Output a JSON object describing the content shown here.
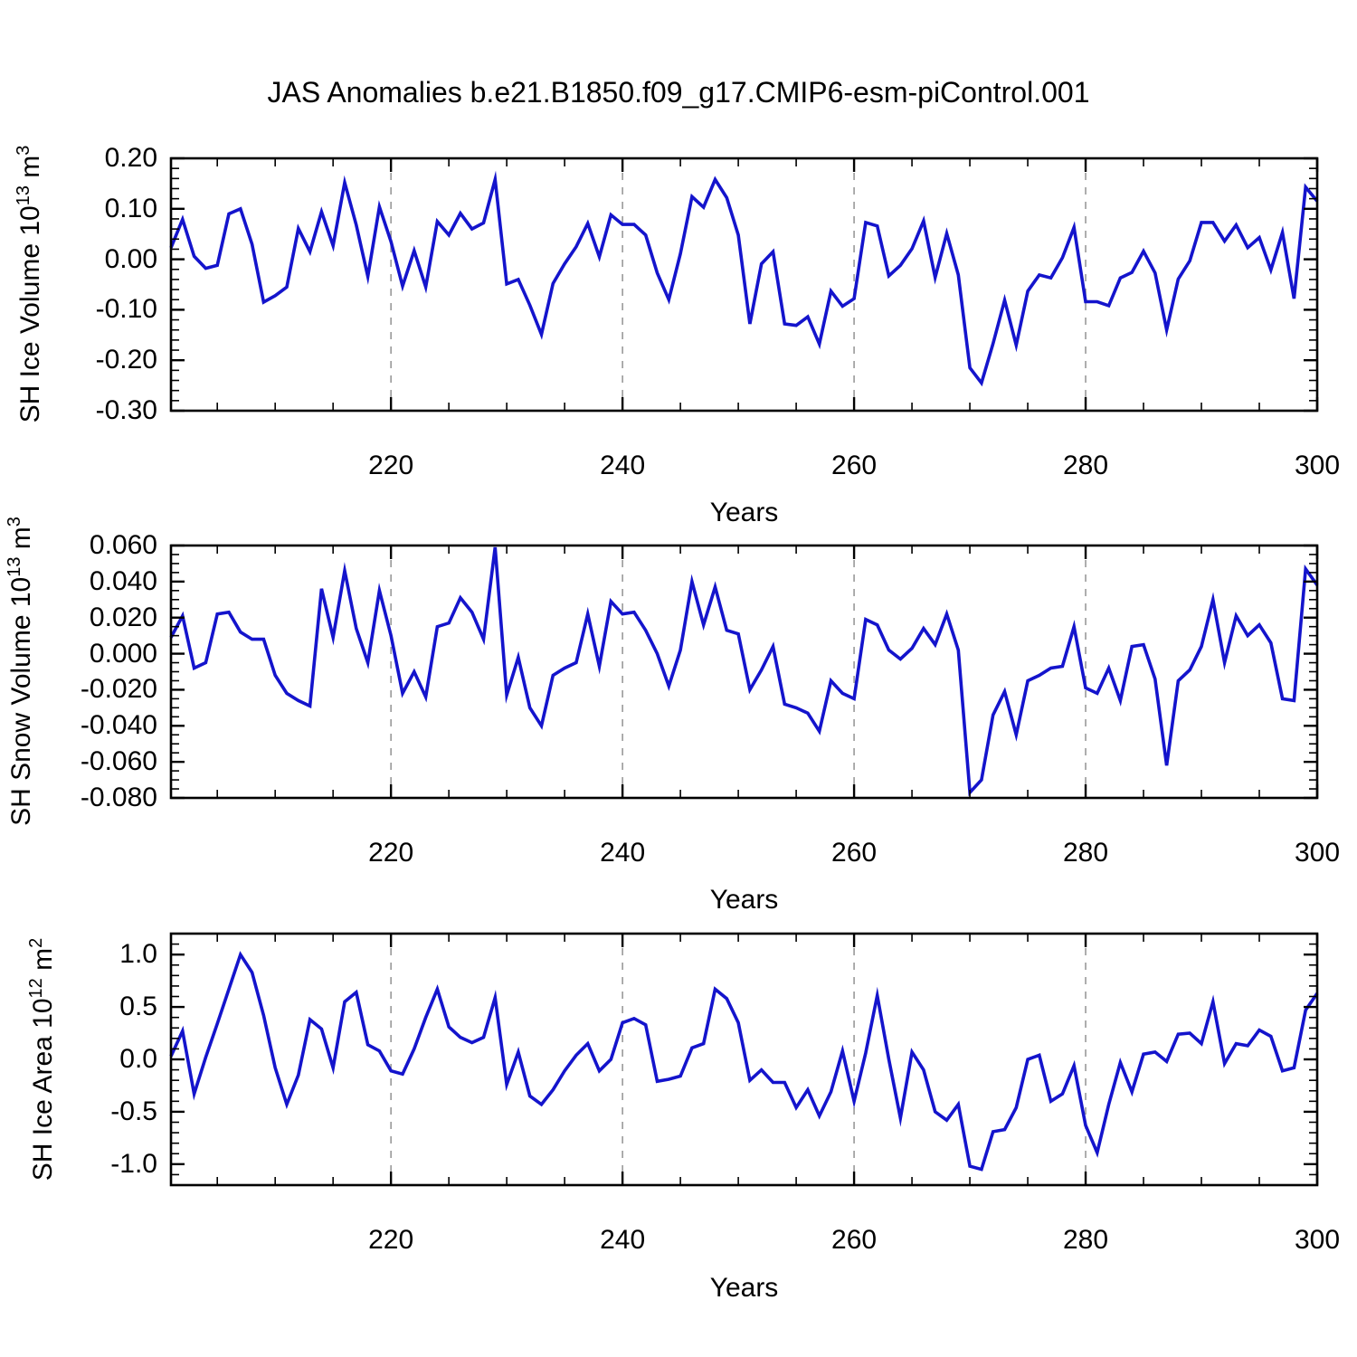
{
  "title": "JAS Anomalies b.e21.B1850.f09_g17.CMIP6-esm-piControl.001",
  "colors": {
    "line": "#1414cc",
    "grid": "#999999",
    "axis": "#000000"
  },
  "x": {
    "label": "Years",
    "start": 201,
    "end": 300,
    "major_ticks": [
      220,
      240,
      260,
      280,
      300
    ],
    "major_tick_labels": [
      "220",
      "240",
      "260",
      "280",
      "300"
    ],
    "minor_step": 5,
    "gridlines": [
      220,
      240,
      260,
      280
    ]
  },
  "chart_data": [
    {
      "type": "line",
      "ylabel": {
        "base": "SH Ice Volume 10",
        "exp": "13",
        "unit": " m",
        "unit_exp": "3"
      },
      "ylim": [
        -0.3,
        0.2
      ],
      "ytick_values": [
        0.2,
        0.1,
        0.0,
        -0.1,
        -0.2,
        -0.3
      ],
      "ytick_labels": [
        "0.20",
        "0.10",
        "0.00",
        "-0.10",
        "-0.20",
        "-0.30"
      ],
      "yminor_step": 0.02,
      "xlabel": "Years",
      "x": [
        201,
        202,
        203,
        204,
        205,
        206,
        207,
        208,
        209,
        210,
        211,
        212,
        213,
        214,
        215,
        216,
        217,
        218,
        219,
        220,
        221,
        222,
        223,
        224,
        225,
        226,
        227,
        228,
        229,
        230,
        231,
        232,
        233,
        234,
        235,
        236,
        237,
        238,
        239,
        240,
        241,
        242,
        243,
        244,
        245,
        246,
        247,
        248,
        249,
        250,
        251,
        252,
        253,
        254,
        255,
        256,
        257,
        258,
        259,
        260,
        261,
        262,
        263,
        264,
        265,
        266,
        267,
        268,
        269,
        270,
        271,
        272,
        273,
        274,
        275,
        276,
        277,
        278,
        279,
        280,
        281,
        282,
        283,
        284,
        285,
        286,
        287,
        288,
        289,
        290,
        291,
        292,
        293,
        294,
        295,
        296,
        297,
        298,
        299,
        300
      ],
      "values": [
        0.023,
        0.079,
        0.006,
        -0.018,
        -0.012,
        0.09,
        0.1,
        0.03,
        -0.085,
        -0.072,
        -0.055,
        0.061,
        0.015,
        0.094,
        0.027,
        0.152,
        0.068,
        -0.034,
        0.104,
        0.035,
        -0.053,
        0.017,
        -0.055,
        0.075,
        0.048,
        0.091,
        0.06,
        0.072,
        0.158,
        -0.049,
        -0.04,
        -0.091,
        -0.149,
        -0.048,
        -0.009,
        0.025,
        0.071,
        0.005,
        0.088,
        0.069,
        0.069,
        0.048,
        -0.027,
        -0.08,
        0.011,
        0.124,
        0.103,
        0.158,
        0.122,
        0.048,
        -0.128,
        -0.009,
        0.015,
        -0.128,
        -0.131,
        -0.114,
        -0.168,
        -0.063,
        -0.093,
        -0.078,
        0.073,
        0.066,
        -0.033,
        -0.012,
        0.021,
        0.076,
        -0.036,
        0.051,
        -0.031,
        -0.215,
        -0.245,
        -0.167,
        -0.081,
        -0.17,
        -0.063,
        -0.031,
        -0.037,
        0.003,
        0.063,
        -0.084,
        -0.084,
        -0.092,
        -0.037,
        -0.026,
        0.016,
        -0.027,
        -0.14,
        -0.039,
        -0.003,
        0.073,
        0.073,
        0.036,
        0.068,
        0.023,
        0.043,
        -0.021,
        0.053,
        -0.078,
        0.143,
        0.115
      ]
    },
    {
      "type": "line",
      "ylabel": {
        "base": "SH Snow Volume 10",
        "exp": "13",
        "unit": " m",
        "unit_exp": "3"
      },
      "ylim": [
        -0.08,
        0.06
      ],
      "ytick_values": [
        0.06,
        0.04,
        0.02,
        0.0,
        -0.02,
        -0.04,
        -0.06,
        -0.08
      ],
      "ytick_labels": [
        "0.060",
        "0.040",
        "0.020",
        "0.000",
        "-0.020",
        "-0.040",
        "-0.060",
        "-0.080"
      ],
      "yminor_step": 0.005,
      "xlabel": "Years",
      "x": [
        201,
        202,
        203,
        204,
        205,
        206,
        207,
        208,
        209,
        210,
        211,
        212,
        213,
        214,
        215,
        216,
        217,
        218,
        219,
        220,
        221,
        222,
        223,
        224,
        225,
        226,
        227,
        228,
        229,
        230,
        231,
        232,
        233,
        234,
        235,
        236,
        237,
        238,
        239,
        240,
        241,
        242,
        243,
        244,
        245,
        246,
        247,
        248,
        249,
        250,
        251,
        252,
        253,
        254,
        255,
        256,
        257,
        258,
        259,
        260,
        261,
        262,
        263,
        264,
        265,
        266,
        267,
        268,
        269,
        270,
        271,
        272,
        273,
        274,
        275,
        276,
        277,
        278,
        279,
        280,
        281,
        282,
        283,
        284,
        285,
        286,
        287,
        288,
        289,
        290,
        291,
        292,
        293,
        294,
        295,
        296,
        297,
        298,
        299,
        300
      ],
      "values": [
        0.009,
        0.021,
        -0.008,
        -0.005,
        0.022,
        0.023,
        0.012,
        0.008,
        0.008,
        -0.012,
        -0.022,
        -0.026,
        -0.029,
        0.036,
        0.009,
        0.046,
        0.014,
        -0.005,
        0.035,
        0.01,
        -0.022,
        -0.01,
        -0.024,
        0.015,
        0.017,
        0.031,
        0.023,
        0.008,
        0.059,
        -0.023,
        -0.002,
        -0.03,
        -0.04,
        -0.012,
        -0.008,
        -0.005,
        0.022,
        -0.007,
        0.029,
        0.022,
        0.023,
        0.013,
        0.0,
        -0.018,
        0.002,
        0.04,
        0.016,
        0.037,
        0.013,
        0.011,
        -0.02,
        -0.009,
        0.004,
        -0.028,
        -0.03,
        -0.033,
        -0.043,
        -0.015,
        -0.022,
        -0.025,
        0.019,
        0.016,
        0.002,
        -0.003,
        0.003,
        0.014,
        0.005,
        0.022,
        0.002,
        -0.077,
        -0.07,
        -0.034,
        -0.021,
        -0.045,
        -0.015,
        -0.012,
        -0.008,
        -0.007,
        0.015,
        -0.019,
        -0.022,
        -0.008,
        -0.026,
        0.004,
        0.005,
        -0.014,
        -0.062,
        -0.015,
        -0.009,
        0.004,
        0.03,
        -0.005,
        0.021,
        0.01,
        0.016,
        0.006,
        -0.025,
        -0.026,
        0.047,
        0.038
      ]
    },
    {
      "type": "line",
      "ylabel": {
        "base": "SH Ice Area 10",
        "exp": "12",
        "unit": " m",
        "unit_exp": "2"
      },
      "ylim": [
        -1.2,
        1.2
      ],
      "ytick_values": [
        1.0,
        0.5,
        0.0,
        -0.5,
        -1.0
      ],
      "ytick_labels": [
        "1.0",
        "0.5",
        "0.0",
        "-0.5",
        "-1.0"
      ],
      "yminor_step": 0.1,
      "xlabel": "Years",
      "x": [
        201,
        202,
        203,
        204,
        205,
        206,
        207,
        208,
        209,
        210,
        211,
        212,
        213,
        214,
        215,
        216,
        217,
        218,
        219,
        220,
        221,
        222,
        223,
        224,
        225,
        226,
        227,
        228,
        229,
        230,
        231,
        232,
        233,
        234,
        235,
        236,
        237,
        238,
        239,
        240,
        241,
        242,
        243,
        244,
        245,
        246,
        247,
        248,
        249,
        250,
        251,
        252,
        253,
        254,
        255,
        256,
        257,
        258,
        259,
        260,
        261,
        262,
        263,
        264,
        265,
        266,
        267,
        268,
        269,
        270,
        271,
        272,
        273,
        274,
        275,
        276,
        277,
        278,
        279,
        280,
        281,
        282,
        283,
        284,
        285,
        286,
        287,
        288,
        289,
        290,
        291,
        292,
        293,
        294,
        295,
        296,
        297,
        298,
        299,
        300
      ],
      "values": [
        0.03,
        0.27,
        -0.33,
        0.02,
        0.34,
        0.67,
        1.0,
        0.83,
        0.42,
        -0.08,
        -0.43,
        -0.15,
        0.38,
        0.29,
        -0.08,
        0.55,
        0.64,
        0.14,
        0.08,
        -0.11,
        -0.14,
        0.1,
        0.4,
        0.67,
        0.31,
        0.21,
        0.16,
        0.21,
        0.59,
        -0.24,
        0.07,
        -0.35,
        -0.43,
        -0.29,
        -0.11,
        0.04,
        0.15,
        -0.11,
        0.0,
        0.35,
        0.39,
        0.33,
        -0.21,
        -0.19,
        -0.16,
        0.11,
        0.15,
        0.67,
        0.58,
        0.35,
        -0.2,
        -0.1,
        -0.22,
        -0.22,
        -0.46,
        -0.29,
        -0.54,
        -0.31,
        0.08,
        -0.4,
        0.06,
        0.61,
        0.0,
        -0.56,
        0.07,
        -0.1,
        -0.5,
        -0.58,
        -0.43,
        -1.02,
        -1.05,
        -0.69,
        -0.67,
        -0.46,
        0.0,
        0.04,
        -0.4,
        -0.33,
        -0.06,
        -0.63,
        -0.89,
        -0.43,
        -0.03,
        -0.31,
        0.05,
        0.07,
        -0.02,
        0.24,
        0.25,
        0.15,
        0.55,
        -0.04,
        0.15,
        0.13,
        0.28,
        0.22,
        -0.11,
        -0.08,
        0.47,
        0.63
      ]
    }
  ]
}
